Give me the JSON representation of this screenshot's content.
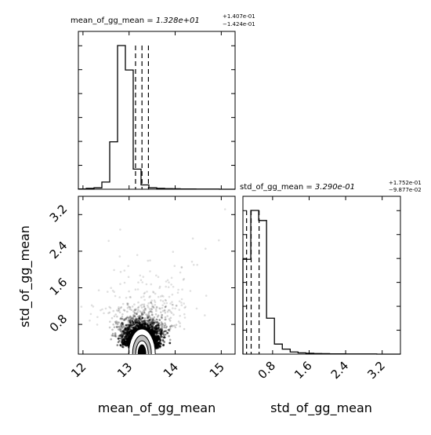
{
  "chart_data": [
    {
      "type": "histogram",
      "panel": "top-left",
      "title": {
        "param": "mean_of_gg_mean",
        "median": "1.328e+01",
        "upper": "+1.407e-01",
        "lower": "−1.424e-01"
      },
      "xlim": [
        11.9,
        15.3
      ],
      "bins": {
        "edges": [
          11.9,
          12.07,
          12.24,
          12.41,
          12.58,
          12.75,
          12.92,
          13.09,
          13.26,
          13.43,
          13.6,
          13.77,
          13.94,
          14.11,
          14.28,
          14.45,
          14.62,
          14.79,
          14.96,
          15.13,
          15.3
        ],
        "counts": [
          0.002,
          0.006,
          0.01,
          0.05,
          0.33,
          1.0,
          0.83,
          0.14,
          0.03,
          0.01,
          0.006,
          0.004,
          0.003,
          0.002,
          0.002,
          0.001,
          0.001,
          0.001,
          0.0,
          0.0
        ]
      },
      "quantile_lines": [
        13.14,
        13.28,
        13.42
      ],
      "ylabels_shown": false
    },
    {
      "type": "scatter",
      "panel": "bottom-left",
      "xlabel": "mean_of_gg_mean",
      "ylabel": "std_of_gg_mean",
      "xlim": [
        11.9,
        15.3
      ],
      "ylim": [
        0.15,
        3.6
      ],
      "xticks": [
        "12",
        "13",
        "14",
        "15"
      ],
      "yticks": [
        "0.8",
        "1.6",
        "2.4",
        "3.2"
      ],
      "center": {
        "x": 13.28,
        "y": 0.33
      },
      "contours": "density contours near the lower center"
    },
    {
      "type": "histogram",
      "panel": "bottom-right",
      "title": {
        "param": "std_of_gg_mean",
        "median": "3.290e-01",
        "upper": "+1.752e-01",
        "lower": "−9.877e-02"
      },
      "xlabel": "std_of_gg_mean",
      "xlim": [
        0.15,
        3.6
      ],
      "xticks": [
        "0.8",
        "1.6",
        "2.4",
        "3.2"
      ],
      "bins": {
        "edges": [
          0.15,
          0.3225,
          0.495,
          0.6675,
          0.84,
          1.0125,
          1.185,
          1.3575,
          1.53,
          1.7025,
          1.875,
          2.0475,
          2.22,
          2.3925,
          2.565,
          2.7375,
          2.91,
          3.0825,
          3.255,
          3.4275,
          3.6
        ],
        "counts": [
          0.66,
          1.0,
          0.93,
          0.25,
          0.07,
          0.035,
          0.015,
          0.009,
          0.006,
          0.004,
          0.003,
          0.002,
          0.002,
          0.001,
          0.001,
          0.001,
          0.001,
          0.0,
          0.0,
          0.0
        ]
      },
      "quantile_lines": [
        0.23,
        0.33,
        0.504
      ],
      "ylabels_shown": false
    }
  ]
}
